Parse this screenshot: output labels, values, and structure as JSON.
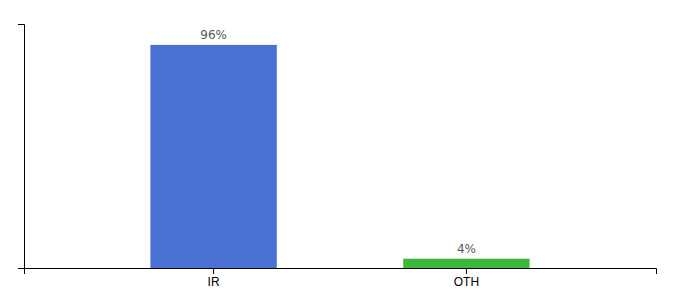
{
  "chart_data": {
    "type": "bar",
    "categories": [
      "IR",
      "OTH"
    ],
    "values": [
      96,
      4
    ],
    "value_labels": [
      "96%",
      "4%"
    ],
    "colors": [
      "#4a72d5",
      "#3cb83c"
    ],
    "ylim": [
      0,
      105
    ],
    "data_labels": true,
    "tick_labels": "x",
    "grid": false
  }
}
